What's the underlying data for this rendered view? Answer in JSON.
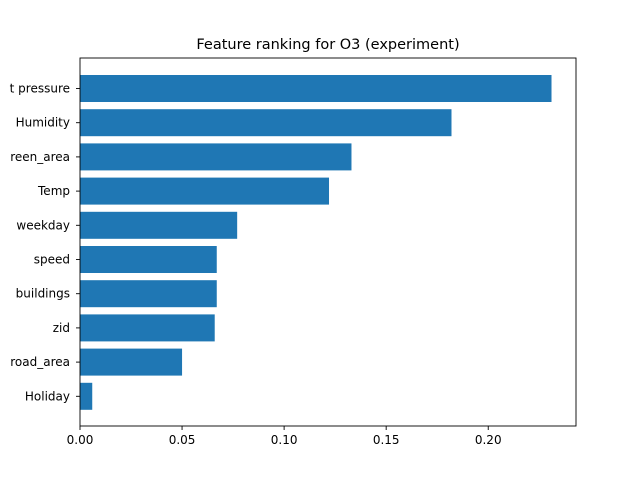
{
  "chart_data": {
    "type": "bar",
    "orientation": "horizontal",
    "title": "Feature ranking for O3 (experiment)",
    "xlabel": "",
    "ylabel": "",
    "categories": [
      "Holiday",
      "road_area",
      "zid",
      "buildings",
      "speed",
      "weekday",
      "Temp",
      "green_area",
      "Weat pressure",
      "Humidity"
    ],
    "categories_top_to_bottom": [
      "t pressure",
      "Humidity",
      "reen_area",
      "Temp",
      "weekday",
      "speed",
      "buildings",
      "zid",
      "road_area",
      "Holiday"
    ],
    "values_top_to_bottom": [
      0.231,
      0.182,
      0.133,
      0.122,
      0.077,
      0.067,
      0.067,
      0.066,
      0.05,
      0.006
    ],
    "xlim": [
      0.0,
      0.243
    ],
    "xticks": [
      0.0,
      0.05,
      0.1,
      0.15,
      0.2
    ],
    "xtick_labels": [
      "0.00",
      "0.05",
      "0.10",
      "0.15",
      "0.20"
    ],
    "bar_color": "#1f77b4",
    "grid": false,
    "legend": "none"
  }
}
